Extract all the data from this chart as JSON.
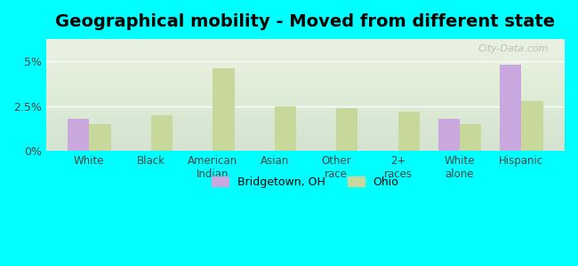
{
  "title": "Geographical mobility - Moved from different state",
  "categories": [
    "White",
    "Black",
    "American\nIndian",
    "Asian",
    "Other\nrace",
    "2+\nraces",
    "White\nalone",
    "Hispanic"
  ],
  "bridgetown_values": [
    1.8,
    0.0,
    0.0,
    0.0,
    0.0,
    0.0,
    1.8,
    4.8
  ],
  "ohio_values": [
    1.5,
    2.0,
    4.6,
    2.5,
    2.4,
    2.2,
    1.5,
    2.8
  ],
  "bridgetown_color": "#c9a8e0",
  "ohio_color": "#c8d89a",
  "ylim": [
    0,
    6.25
  ],
  "yticks": [
    0,
    2.5,
    5.0
  ],
  "ytick_labels": [
    "0%",
    "2.5%",
    "5%"
  ],
  "background_color": "#00ffff",
  "plot_bg_top": "#e8f0e0",
  "plot_bg_bottom": "#f5f8ee",
  "legend_bridgetown": "Bridgetown, OH",
  "legend_ohio": "Ohio",
  "bar_width": 0.35,
  "title_fontsize": 14,
  "watermark": "City-Data.com"
}
